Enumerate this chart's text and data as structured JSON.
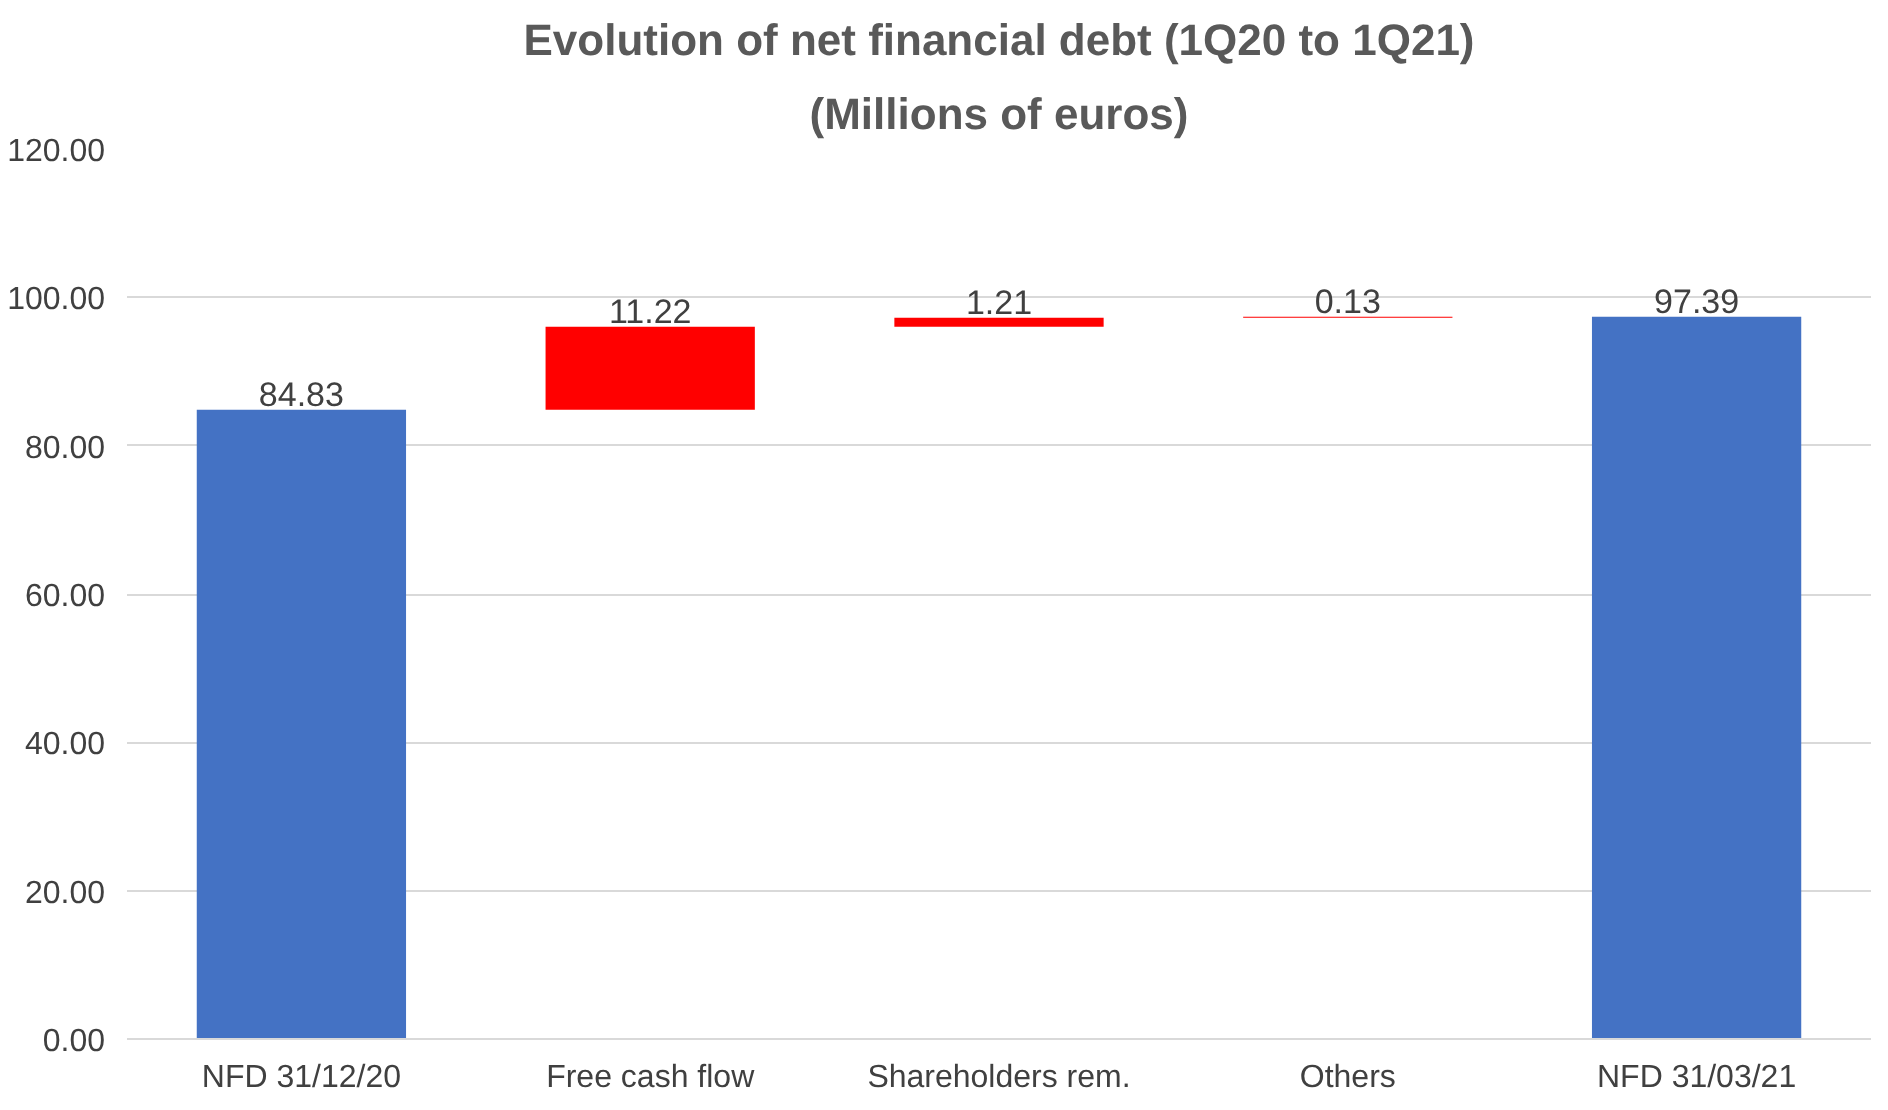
{
  "chart_data": {
    "type": "bar",
    "title": "Evolution of net financial debt (1Q20 to 1Q21)",
    "subtitle": "(Millions of euros)",
    "categories": [
      "NFD 31/12/20",
      "Free cash flow",
      "Shareholders rem.",
      "Others",
      "NFD 31/03/21"
    ],
    "values": [
      84.83,
      11.22,
      1.21,
      0.13,
      97.39
    ],
    "base": [
      0,
      84.83,
      96.05,
      97.26,
      0
    ],
    "colors": [
      "#4472c4",
      "#ff0000",
      "#ff0000",
      "#ff0000",
      "#4472c4"
    ],
    "data_labels": true,
    "ylim": [
      0,
      120
    ],
    "yticks": [
      {
        "value": 0,
        "label": "0.00"
      },
      {
        "value": 20,
        "label": "20.00"
      },
      {
        "value": 40,
        "label": "40.00"
      },
      {
        "value": 60,
        "label": "60.00"
      },
      {
        "value": 80,
        "label": "80.00"
      },
      {
        "value": 100,
        "label": "100.00"
      },
      {
        "value": 120,
        "label": "120.00"
      }
    ],
    "grid": "y"
  }
}
